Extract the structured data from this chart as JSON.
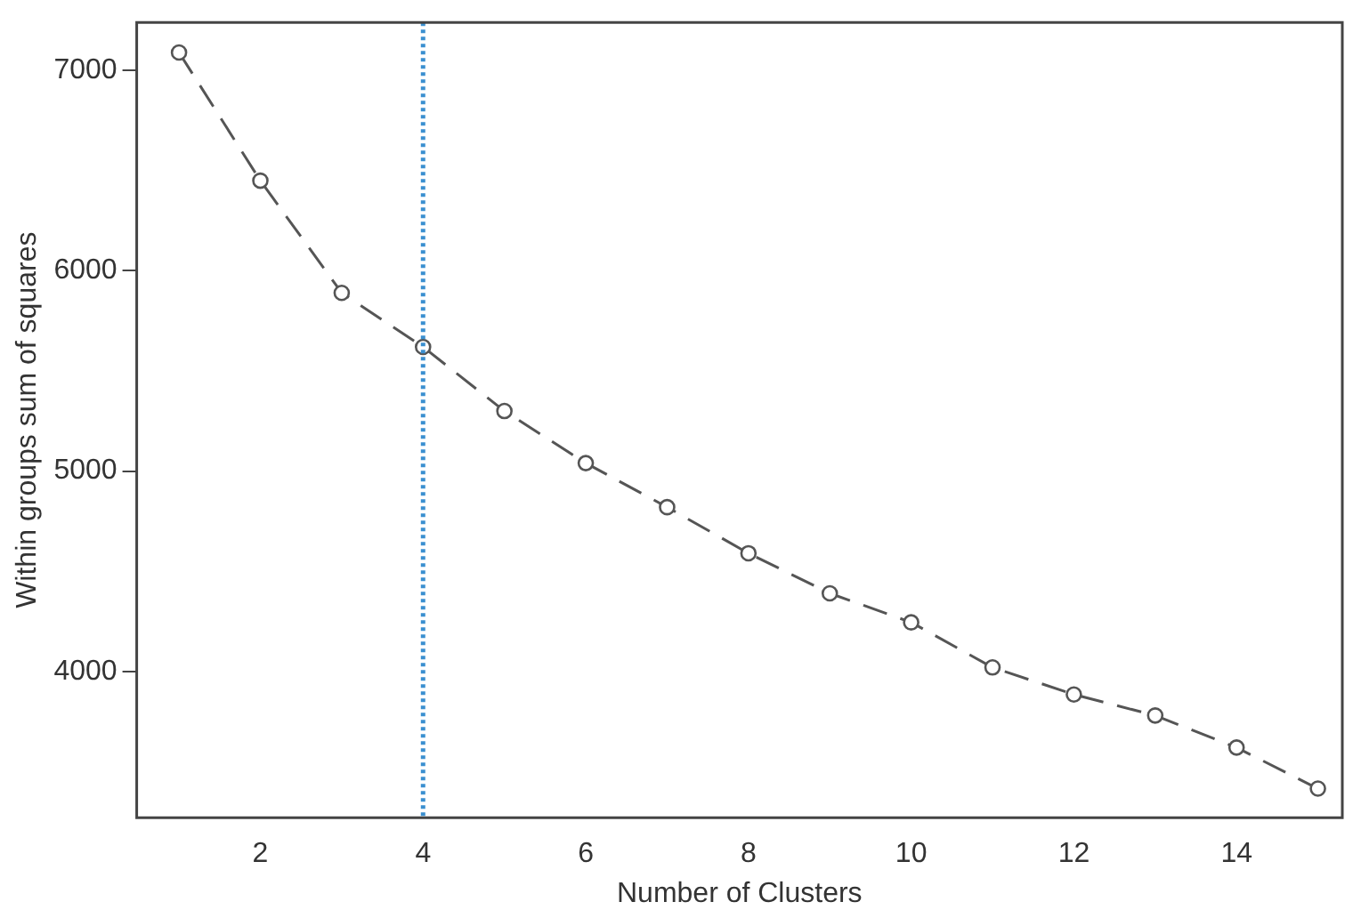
{
  "chart_data": {
    "type": "line",
    "xlabel": "Number of Clusters",
    "ylabel": "Within groups sum of squares",
    "x": [
      1,
      2,
      3,
      4,
      5,
      6,
      7,
      8,
      9,
      10,
      11,
      12,
      13,
      14,
      15
    ],
    "series": [
      {
        "color": "#555555",
        "values": [
          7090,
          6450,
          5890,
          5620,
          5300,
          5040,
          4820,
          4590,
          4390,
          4245,
          4020,
          3885,
          3780,
          3620,
          3415
        ]
      }
    ],
    "xlim": [
      0.48,
      15.3
    ],
    "xticks": [
      2,
      4,
      6,
      8,
      10,
      12,
      14
    ],
    "ylim": [
      3270,
      7240
    ],
    "yticks": [
      4000,
      5000,
      6000,
      7000
    ],
    "ref_lines": [
      {
        "axis": "x",
        "value": 4,
        "color": "#3a8fd0",
        "line_style": "dotted"
      }
    ],
    "marker": "circle",
    "line_style": "dashed",
    "grid": false,
    "legend": false
  }
}
